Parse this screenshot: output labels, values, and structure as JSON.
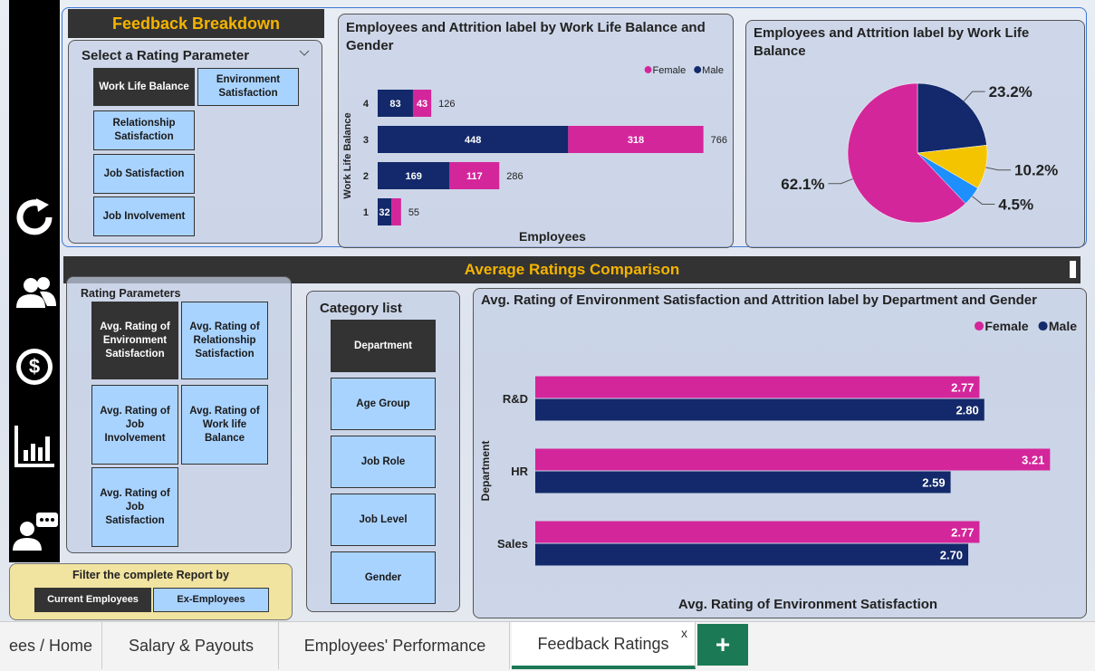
{
  "feedback_breakdown": {
    "title": "Feedback Breakdown",
    "slicer": {
      "title": "Select a Rating Parameter",
      "selected": 0,
      "options": [
        "Work Life Balance",
        "Environment Satisfaction",
        "Relationship Satisfaction",
        "Job Satisfaction",
        "Job Involvement"
      ]
    }
  },
  "average_ratings": {
    "title": "Average Ratings Comparison",
    "rating_parameters": {
      "title": "Rating Parameters",
      "selected": 0,
      "options": [
        "Avg. Rating of Environment Satisfaction",
        "Avg. Rating of Relationship Satisfaction",
        "Avg. Rating of Job Involvement",
        "Avg. Rating of Work life Balance",
        "Avg. Rating of Job Satisfaction"
      ]
    },
    "category_list": {
      "title": "Category list",
      "selected": 0,
      "options": [
        "Department",
        "Age Group",
        "Job Role",
        "Job Level",
        "Gender"
      ]
    }
  },
  "filter": {
    "title": "Filter the complete Report by",
    "selected": 0,
    "options": [
      "Current Employees",
      "Ex-Employees"
    ]
  },
  "tabs": {
    "items": [
      "ees / Home",
      "Salary & Payouts",
      "Employees' Performance",
      "Feedback Ratings"
    ],
    "active": 3,
    "close": "x",
    "add": "+"
  },
  "chart_data": [
    {
      "type": "bar",
      "orientation": "horizontal",
      "stacked": true,
      "title": "Employees and Attrition label by Work Life Balance and Gender",
      "categories": [
        "4",
        "3",
        "2",
        "1"
      ],
      "series": [
        {
          "name": "Female",
          "color": "#d4269b",
          "values": [
            43,
            318,
            117,
            23
          ],
          "value_labels": [
            "43",
            "318",
            "117",
            null
          ]
        },
        {
          "name": "Male",
          "color": "#13296b",
          "values": [
            83,
            448,
            169,
            32
          ]
        }
      ],
      "totals": [
        126,
        766,
        286,
        55
      ],
      "xlim": [
        0,
        820
      ],
      "x_label": "Employees",
      "y_label": "Work Life Balance",
      "legend": "top-right"
    },
    {
      "type": "pie",
      "title": "Employees and Attrition label by Work Life Balance",
      "values": [
        23.2,
        10.2,
        4.5,
        62.1
      ],
      "value_labels": [
        "23.2%",
        "10.2%",
        "4.5%",
        "62.1%"
      ],
      "colors": [
        "#13296b",
        "#f5c400",
        "#1e8fff",
        "#d4269b"
      ]
    },
    {
      "type": "bar",
      "orientation": "horizontal",
      "stacked": false,
      "title": "Avg. Rating of Environment Satisfaction and Attrition label by Department and Gender",
      "categories": [
        "R&D",
        "HR",
        "Sales"
      ],
      "series": [
        {
          "name": "Female",
          "color": "#d4269b",
          "values": [
            2.77,
            3.21,
            2.77
          ]
        },
        {
          "name": "Male",
          "color": "#13296b",
          "values": [
            2.8,
            2.59,
            2.7
          ],
          "value_labels": [
            "2.80",
            "2.59",
            "2.70"
          ]
        }
      ],
      "xlim": [
        0,
        3.4
      ],
      "x_label": "Avg. Rating of Environment Satisfaction",
      "y_label": "Department",
      "legend": "top-right"
    }
  ]
}
